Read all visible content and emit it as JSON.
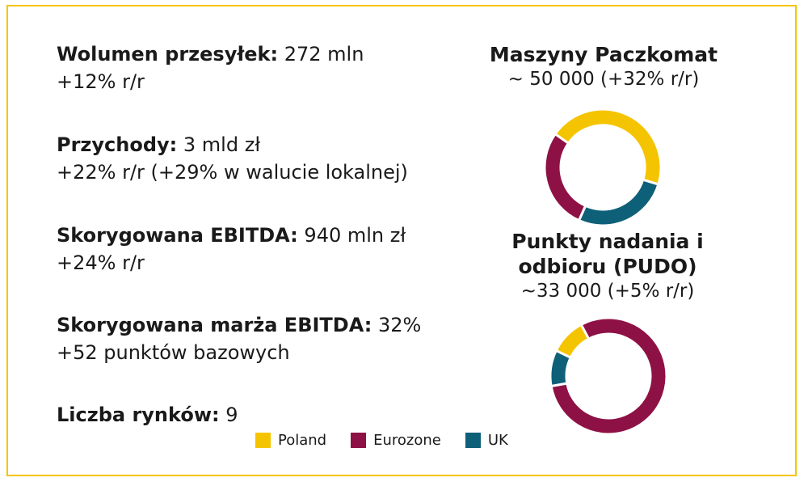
{
  "metrics": [
    {
      "label": "Wolumen przesyłek:",
      "value": "272 mln",
      "change": "+12% r/r"
    },
    {
      "label": "Przychody:",
      "value": "3 mld zł",
      "change": "+22% r/r (+29% w walucie lokalnej)"
    },
    {
      "label": "Skorygowana EBITDA:",
      "value": "940 mln zł",
      "change": "+24% r/r"
    },
    {
      "label": "Skorygowana marża EBITDA:",
      "value": "32%",
      "change": "+52 punktów bazowych"
    },
    {
      "label": "Liczba rynków:",
      "value": "9",
      "change": ""
    }
  ],
  "colors": {
    "Poland": "#f5c400",
    "Eurozone": "#8e1146",
    "UK": "#0e6078",
    "border": "#f5c400"
  },
  "chart_data": [
    {
      "type": "pie",
      "title": "Maszyny Paczkomat",
      "subtitle": "~ 50 000 (+32% r/r)",
      "categories": [
        "Poland",
        "UK",
        "Eurozone"
      ],
      "values": [
        45,
        27,
        28
      ],
      "donut": true
    },
    {
      "type": "pie",
      "title": "Punkty nadania i odbioru (PUDO)",
      "title_lines": [
        "Punkty nadania i",
        "odbioru (PUDO)"
      ],
      "subtitle": "~33 000 (+5% r/r)",
      "categories": [
        "Eurozone",
        "UK",
        "Poland"
      ],
      "values": [
        80,
        10,
        10
      ],
      "donut": true
    }
  ],
  "legend": {
    "items": [
      "Poland",
      "Eurozone",
      "UK"
    ],
    "placement": "bottom"
  }
}
